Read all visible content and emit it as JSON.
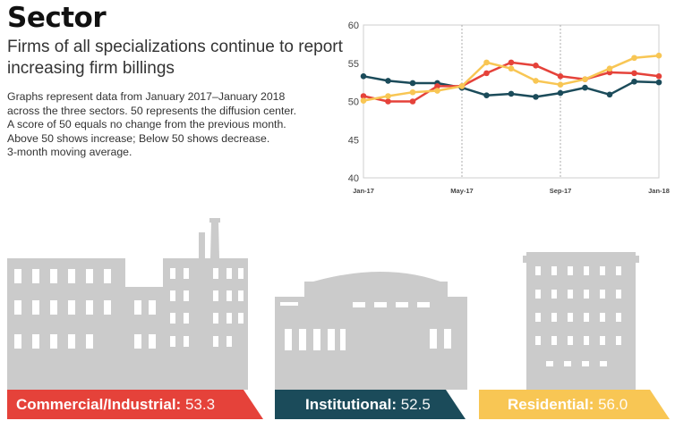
{
  "header": {
    "title": "Sector",
    "subtitle_lines": [
      "Firms of all specializations continue to report",
      "increasing firm billings"
    ],
    "description_lines": [
      "Graphs represent data from January 2017–January 2018",
      "across the three sectors. 50 represents the diffusion center.",
      "A score of 50 equals no change from the previous month.",
      "Above 50 shows increase; Below 50 shows decrease.",
      "3-month moving average."
    ]
  },
  "chart_data": {
    "type": "line",
    "title": "",
    "xlabel": "",
    "ylabel": "",
    "x": [
      "Jan-17",
      "Feb-17",
      "Mar-17",
      "Apr-17",
      "May-17",
      "Jun-17",
      "Jul-17",
      "Aug-17",
      "Sep-17",
      "Oct-17",
      "Nov-17",
      "Dec-17",
      "Jan-18"
    ],
    "x_tick_labels": [
      "Jan-17",
      "May-17",
      "Sep-17",
      "Jan-18"
    ],
    "yticks": [
      40,
      45,
      50,
      55,
      60
    ],
    "ylim": [
      40,
      60
    ],
    "grid": "dotted vertical lines at tick months",
    "series": [
      {
        "key": "institutional",
        "color": "#1b4b5a",
        "values": [
          53.3,
          52.7,
          52.4,
          52.4,
          51.8,
          50.8,
          51.0,
          50.6,
          51.1,
          51.8,
          50.9,
          52.6,
          52.5
        ]
      },
      {
        "key": "commercial",
        "color": "#e5423a",
        "values": [
          50.7,
          50.0,
          50.0,
          52.0,
          52.0,
          53.7,
          55.1,
          54.7,
          53.3,
          52.9,
          53.8,
          53.7,
          53.3
        ]
      },
      {
        "key": "residential",
        "color": "#f8c654",
        "values": [
          50.1,
          50.7,
          51.2,
          51.4,
          52.0,
          55.1,
          54.3,
          52.7,
          52.2,
          52.9,
          54.3,
          55.7,
          56.0
        ]
      }
    ]
  },
  "sectors": {
    "commercial": {
      "name": "Commercial/Industrial:",
      "value": "53.3",
      "color": "#e5423a"
    },
    "institutional": {
      "name": "Institutional:",
      "value": "52.5",
      "color": "#1b4b5a"
    },
    "residential": {
      "name": "Residential:",
      "value": "56.0",
      "color": "#f8c654"
    }
  }
}
